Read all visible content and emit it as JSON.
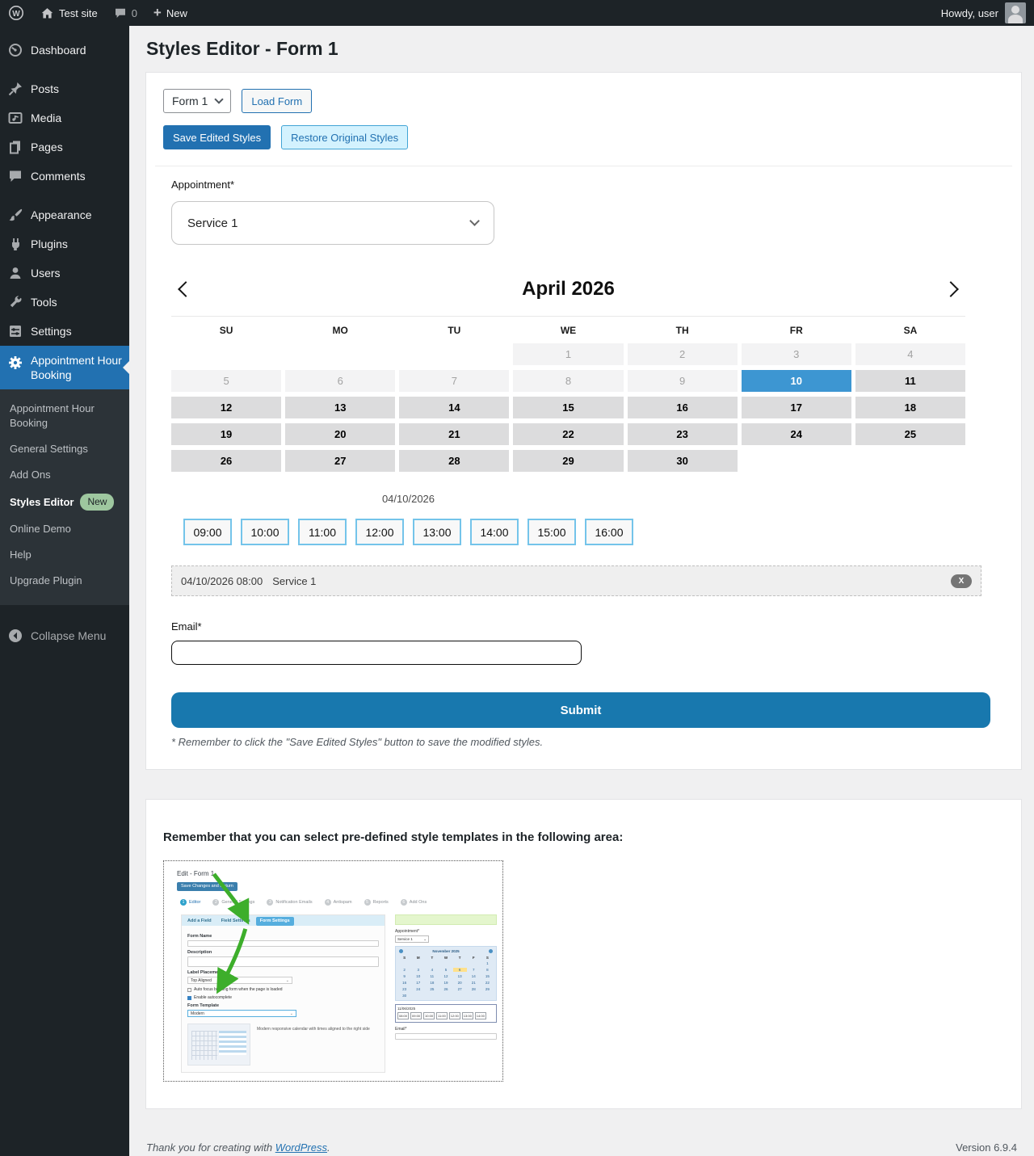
{
  "admin_bar": {
    "site": "Test site",
    "comments_count": "0",
    "new_label": "New",
    "howdy": "Howdy, user"
  },
  "sidebar": {
    "items": [
      {
        "label": "Dashboard"
      },
      {
        "label": "Posts"
      },
      {
        "label": "Media"
      },
      {
        "label": "Pages"
      },
      {
        "label": "Comments"
      },
      {
        "label": "Appearance"
      },
      {
        "label": "Plugins"
      },
      {
        "label": "Users"
      },
      {
        "label": "Tools"
      },
      {
        "label": "Settings"
      }
    ],
    "active_item": "Appointment Hour Booking",
    "submenu": {
      "item0": "Appointment Hour Booking",
      "item1": "General Settings",
      "item2": "Add Ons",
      "item3": "Styles Editor",
      "item3_badge": "New",
      "item4": "Online Demo",
      "item5": "Help",
      "item6": "Upgrade Plugin"
    },
    "collapse": "Collapse Menu"
  },
  "page": {
    "title": "Styles Editor - Form 1"
  },
  "toolbar": {
    "form_select_value": "Form 1",
    "load_form_label": "Load Form",
    "save_label": "Save Edited Styles",
    "restore_label": "Restore Original Styles"
  },
  "form_preview": {
    "appointment_label": "Appointment*",
    "service_value": "Service 1",
    "calendar": {
      "title": "April 2026",
      "day_headers": [
        "SU",
        "MO",
        "TU",
        "WE",
        "TH",
        "FR",
        "SA"
      ],
      "weeks": [
        [
          {
            "d": "",
            "state": "empty"
          },
          {
            "d": "",
            "state": "empty"
          },
          {
            "d": "",
            "state": "empty"
          },
          {
            "d": "1",
            "state": "disabled"
          },
          {
            "d": "2",
            "state": "disabled"
          },
          {
            "d": "3",
            "state": "disabled"
          },
          {
            "d": "4",
            "state": "disabled"
          }
        ],
        [
          {
            "d": "5",
            "state": "disabled"
          },
          {
            "d": "6",
            "state": "disabled"
          },
          {
            "d": "7",
            "state": "disabled"
          },
          {
            "d": "8",
            "state": "disabled"
          },
          {
            "d": "9",
            "state": "disabled"
          },
          {
            "d": "10",
            "state": "selected"
          },
          {
            "d": "11",
            "state": "open"
          }
        ],
        [
          {
            "d": "12",
            "state": "open"
          },
          {
            "d": "13",
            "state": "open"
          },
          {
            "d": "14",
            "state": "open"
          },
          {
            "d": "15",
            "state": "open"
          },
          {
            "d": "16",
            "state": "open"
          },
          {
            "d": "17",
            "state": "open"
          },
          {
            "d": "18",
            "state": "open"
          }
        ],
        [
          {
            "d": "19",
            "state": "open"
          },
          {
            "d": "20",
            "state": "open"
          },
          {
            "d": "21",
            "state": "open"
          },
          {
            "d": "22",
            "state": "open"
          },
          {
            "d": "23",
            "state": "open"
          },
          {
            "d": "24",
            "state": "open"
          },
          {
            "d": "25",
            "state": "open"
          }
        ],
        [
          {
            "d": "26",
            "state": "open"
          },
          {
            "d": "27",
            "state": "open"
          },
          {
            "d": "28",
            "state": "open"
          },
          {
            "d": "29",
            "state": "open"
          },
          {
            "d": "30",
            "state": "open"
          },
          {
            "d": "",
            "state": "empty"
          },
          {
            "d": "",
            "state": "empty"
          }
        ]
      ]
    },
    "selected_date": "04/10/2026",
    "time_slots": [
      "09:00",
      "10:00",
      "11:00",
      "12:00",
      "13:00",
      "14:00",
      "15:00",
      "16:00"
    ],
    "booking": {
      "datetime": "04/10/2026 08:00",
      "service": "Service 1",
      "remove": "X"
    },
    "email_label": "Email*",
    "submit_label": "Submit",
    "note": "* Remember to click the \"Save Edited Styles\" button to save the modified styles."
  },
  "templates_section": {
    "heading": "Remember that you can select pre-defined style templates in the following area:",
    "thumb": {
      "title": "Edit - Form 1",
      "save_btn": "Save Changes and Return",
      "tabs": [
        {
          "n": "1",
          "label": "Editor"
        },
        {
          "n": "2",
          "label": "General Settings"
        },
        {
          "n": "3",
          "label": "Notification Emails"
        },
        {
          "n": "4",
          "label": "Antispam"
        },
        {
          "n": "5",
          "label": "Reports"
        },
        {
          "n": "6",
          "label": "Add Ons"
        }
      ],
      "subtabs": [
        "Add a Field",
        "Field Settings",
        "Form Settings"
      ],
      "fields": {
        "form_name": "Form Name",
        "description": "Description",
        "label_placement": "Label Placement",
        "label_placement_value": "Top Aligned",
        "autofocus": "Auto focus booking form when the page is loaded",
        "autocomplete": "Enable autocomplete",
        "form_template": "Form Template",
        "form_template_value": "Modern",
        "caption": "Modern responsive calendar with times aligned to the right side"
      },
      "preview": {
        "appointment": "Appointment*",
        "service": "Service 1 ",
        "month": "November  2025",
        "day_letters": [
          "S",
          "M",
          "T",
          "W",
          "T",
          "F",
          "S"
        ],
        "weeks": [
          [
            "",
            "",
            "",
            "",
            "",
            "",
            "1"
          ],
          [
            "2",
            "3",
            "4",
            "5",
            "6",
            "7",
            "8"
          ],
          [
            "9",
            "10",
            "11",
            "12",
            "13",
            "14",
            "15"
          ],
          [
            "16",
            "17",
            "18",
            "19",
            "20",
            "21",
            "22"
          ],
          [
            "23",
            "24",
            "25",
            "26",
            "27",
            "28",
            "29"
          ],
          [
            "30",
            "",
            "",
            "",
            "",
            "",
            ""
          ]
        ],
        "highlight_day": "6",
        "date": "11/06/2025",
        "times": [
          "08:00",
          "09:00",
          "10:00",
          "11:00",
          "12:00",
          "13:00",
          "14:00"
        ],
        "email": "Email*"
      }
    }
  },
  "footer": {
    "thanks": "Thank you for creating with ",
    "wordpress": "WordPress",
    "period": ".",
    "version": "Version 6.9.4"
  },
  "colors": {
    "accent": "#2271b1",
    "selected_day": "#3d96d2",
    "submit_blue": "#1878ae",
    "badge_green": "#9ec79f"
  }
}
